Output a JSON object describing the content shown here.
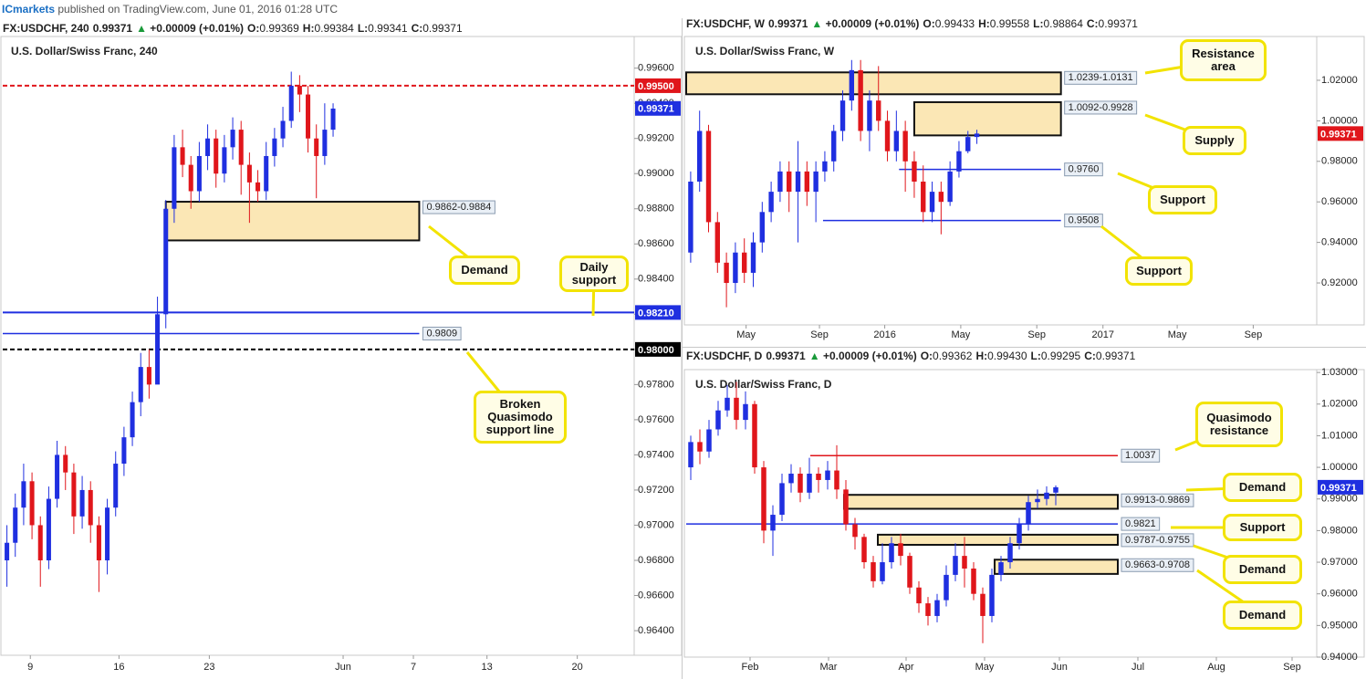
{
  "header": {
    "publisher": "ICmarkets",
    "published_text": "published on TradingView.com, June 01, 2016 01:28 UTC"
  },
  "chart_data": [
    {
      "type": "candlestick",
      "symbol": "FX:USDCHF, 240",
      "last": "0.99371",
      "change": "+0.00009 (+0.01%)",
      "ohlc": [
        {
          "label": "O:",
          "value": "0.99369"
        },
        {
          "label": "H:",
          "value": "0.99384"
        },
        {
          "label": "L:",
          "value": "0.99341"
        },
        {
          "label": "C:",
          "value": "0.99371"
        }
      ],
      "title": "U.S. Dollar/Swiss Franc, 240",
      "up_color": "#1f2fe0",
      "down_color": "#e0161b",
      "xlim": [
        -0.5,
        75
      ],
      "xticks": [
        {
          "value": 2.8,
          "label": "9"
        },
        {
          "value": 13.4,
          "label": "16"
        },
        {
          "value": 24.2,
          "label": "23"
        },
        {
          "value": 40.2,
          "label": "Jun"
        },
        {
          "value": 48.6,
          "label": "7"
        },
        {
          "value": 57.4,
          "label": "13"
        },
        {
          "value": 68.2,
          "label": "20"
        }
      ],
      "ylim": [
        0.9626,
        0.9978
      ],
      "yticks": [
        {
          "value": 0.964,
          "label": "0.96400"
        },
        {
          "value": 0.966,
          "label": "0.96600"
        },
        {
          "value": 0.968,
          "label": "0.96800"
        },
        {
          "value": 0.97,
          "label": "0.97000"
        },
        {
          "value": 0.972,
          "label": "0.97200"
        },
        {
          "value": 0.974,
          "label": "0.97400"
        },
        {
          "value": 0.976,
          "label": "0.97600"
        },
        {
          "value": 0.978,
          "label": "0.97800"
        },
        {
          "value": 0.98,
          "label": "0.98000"
        },
        {
          "value": 0.982,
          "label": "0.98200"
        },
        {
          "value": 0.984,
          "label": "0.98400"
        },
        {
          "value": 0.986,
          "label": "0.98600"
        },
        {
          "value": 0.988,
          "label": "0.98800"
        },
        {
          "value": 0.99,
          "label": "0.99000"
        },
        {
          "value": 0.992,
          "label": "0.99200"
        },
        {
          "value": 0.994,
          "label": "0.99400"
        },
        {
          "value": 0.996,
          "label": "0.99600"
        }
      ],
      "candles": {
        "open": [
          0.968,
          0.969,
          0.971,
          0.9725,
          0.97,
          0.968,
          0.9715,
          0.974,
          0.973,
          0.9705,
          0.972,
          0.97,
          0.968,
          0.971,
          0.9735,
          0.975,
          0.977,
          0.979,
          0.978,
          0.982,
          0.988,
          0.9915,
          0.9905,
          0.989,
          0.991,
          0.992,
          0.99,
          0.9915,
          0.9925,
          0.9905,
          0.9895,
          0.989,
          0.991,
          0.992,
          0.993,
          0.995,
          0.9945,
          0.992,
          0.991,
          0.9925
        ],
        "high": [
          0.97,
          0.9718,
          0.9735,
          0.973,
          0.9705,
          0.9722,
          0.9748,
          0.9745,
          0.9735,
          0.9728,
          0.9725,
          0.9705,
          0.9715,
          0.9742,
          0.9756,
          0.9776,
          0.9798,
          0.98,
          0.983,
          0.9885,
          0.9922,
          0.9925,
          0.991,
          0.9918,
          0.9928,
          0.9925,
          0.9922,
          0.9932,
          0.993,
          0.9912,
          0.9902,
          0.9918,
          0.9926,
          0.9938,
          0.9958,
          0.9956,
          0.995,
          0.9928,
          0.994,
          0.994
        ],
        "low": [
          0.9665,
          0.9682,
          0.97,
          0.9692,
          0.9665,
          0.9675,
          0.971,
          0.972,
          0.9695,
          0.9698,
          0.969,
          0.9662,
          0.9672,
          0.9705,
          0.9728,
          0.9745,
          0.9762,
          0.9772,
          0.9805,
          0.9812,
          0.9872,
          0.9898,
          0.988,
          0.9884,
          0.9902,
          0.9892,
          0.9895,
          0.9908,
          0.9888,
          0.9872,
          0.9884,
          0.9885,
          0.9904,
          0.9915,
          0.9926,
          0.9935,
          0.9912,
          0.9886,
          0.9905,
          0.9921
        ],
        "close": [
          0.969,
          0.971,
          0.9725,
          0.97,
          0.968,
          0.9715,
          0.974,
          0.973,
          0.9705,
          0.972,
          0.97,
          0.968,
          0.971,
          0.9735,
          0.975,
          0.977,
          0.979,
          0.978,
          0.982,
          0.988,
          0.9915,
          0.9905,
          0.989,
          0.991,
          0.992,
          0.99,
          0.9915,
          0.9925,
          0.9905,
          0.9895,
          0.989,
          0.991,
          0.992,
          0.993,
          0.995,
          0.9945,
          0.992,
          0.991,
          0.9925,
          0.9937
        ]
      },
      "zones": [
        {
          "low": 0.9862,
          "high": 0.9884,
          "x0": 19,
          "x1": 49.3,
          "label": "0.9862-0.9884"
        }
      ],
      "lines": [
        {
          "value": 0.995,
          "label": "0.99500",
          "color": "#e0161b",
          "dash": true,
          "tag": true
        },
        {
          "value": 0.9821,
          "label": "0.98210",
          "color": "#1f2fe0",
          "tag": true
        },
        {
          "value": 0.9809,
          "label": "0.9809",
          "color": "#1f2fe0",
          "x0": -0.5,
          "x1": 49.3
        },
        {
          "value": 0.98,
          "label": "0.98000",
          "color": "#000000",
          "dash": true,
          "tag": true
        }
      ],
      "price_tag": {
        "value": 0.99371,
        "label": "0.99371",
        "color": "#1f2fe0"
      },
      "annotations": [
        "Demand",
        "Daily support",
        "Broken Quasimodo support line"
      ]
    },
    {
      "type": "candlestick",
      "symbol": "FX:USDCHF, W",
      "last": "0.99371",
      "change": "+0.00009 (+0.01%)",
      "ohlc": [
        {
          "label": "O:",
          "value": "0.99433"
        },
        {
          "label": "H:",
          "value": "0.99558"
        },
        {
          "label": "L:",
          "value": "0.98864"
        },
        {
          "label": "C:",
          "value": "0.99371"
        }
      ],
      "title": "U.S. Dollar/Swiss Franc, W",
      "up_color": "#1f2fe0",
      "down_color": "#e0161b",
      "xlim": [
        -0.5,
        70
      ],
      "xticks": [
        {
          "value": 6.2,
          "label": "May"
        },
        {
          "value": 14.4,
          "label": "Sep"
        },
        {
          "value": 21.7,
          "label": "2016"
        },
        {
          "value": 30.2,
          "label": "May"
        },
        {
          "value": 38.7,
          "label": "Sep"
        },
        {
          "value": 46.1,
          "label": "2017"
        },
        {
          "value": 54.4,
          "label": "May"
        },
        {
          "value": 62.9,
          "label": "Sep"
        }
      ],
      "ylim": [
        0.8993,
        1.0416
      ],
      "yticks": [
        {
          "value": 0.92,
          "label": "0.92000"
        },
        {
          "value": 0.94,
          "label": "0.94000"
        },
        {
          "value": 0.96,
          "label": "0.96000"
        },
        {
          "value": 0.98,
          "label": "0.98000"
        },
        {
          "value": 1.0,
          "label": "1.00000"
        },
        {
          "value": 1.02,
          "label": "1.02000"
        }
      ],
      "candles": {
        "open": [
          0.935,
          0.97,
          0.995,
          0.95,
          0.93,
          0.92,
          0.935,
          0.925,
          0.94,
          0.955,
          0.965,
          0.975,
          0.965,
          0.975,
          0.965,
          0.975,
          0.98,
          0.995,
          1.01,
          1.025,
          0.995,
          1.01,
          1.0,
          0.985,
          0.995,
          0.98,
          0.97,
          0.955,
          0.965,
          0.96,
          0.975,
          0.985,
          0.992
        ],
        "high": [
          0.975,
          1.005,
          0.998,
          0.955,
          0.935,
          0.94,
          0.942,
          0.945,
          0.96,
          0.97,
          0.98,
          0.98,
          0.99,
          0.98,
          0.98,
          0.985,
          0.998,
          1.015,
          1.03,
          1.03,
          1.015,
          1.027,
          1.005,
          1.005,
          1.0,
          0.985,
          0.978,
          0.97,
          0.97,
          0.98,
          0.99,
          0.995,
          0.9956
        ],
        "low": [
          0.93,
          0.965,
          0.945,
          0.925,
          0.908,
          0.915,
          0.92,
          0.918,
          0.935,
          0.95,
          0.96,
          0.955,
          0.94,
          0.958,
          0.95,
          0.97,
          0.975,
          0.99,
          1.005,
          0.99,
          0.985,
          0.995,
          0.98,
          0.98,
          0.965,
          0.962,
          0.95,
          0.95,
          0.944,
          0.958,
          0.972,
          0.984,
          0.9886
        ],
        "close": [
          0.97,
          0.995,
          0.95,
          0.93,
          0.92,
          0.935,
          0.925,
          0.94,
          0.955,
          0.965,
          0.975,
          0.965,
          0.975,
          0.965,
          0.975,
          0.98,
          0.995,
          1.01,
          1.025,
          0.995,
          1.01,
          1.0,
          0.985,
          0.995,
          0.98,
          0.97,
          0.955,
          0.965,
          0.96,
          0.975,
          0.985,
          0.992,
          0.9937
        ]
      },
      "zones": [
        {
          "low": 1.0131,
          "high": 1.0239,
          "x0": -0.5,
          "x1": 41.4,
          "label": "1.0239-1.0131"
        },
        {
          "low": 0.9928,
          "high": 1.0092,
          "x0": 25,
          "x1": 41.4,
          "label": "1.0092-0.9928"
        }
      ],
      "lines": [
        {
          "value": 0.976,
          "label": "0.9760",
          "color": "#1f2fe0",
          "x0": 23.3,
          "x1": 41.4
        },
        {
          "value": 0.9508,
          "label": "0.9508",
          "color": "#1f2fe0",
          "x0": 14.8,
          "x1": 41.4
        }
      ],
      "price_tag": {
        "value": 0.99371,
        "label": "0.99371",
        "color": "#e0161b"
      },
      "annotations": [
        "Resistance area",
        "Supply",
        "Support",
        "Support"
      ]
    },
    {
      "type": "candlestick",
      "symbol": "FX:USDCHF, D",
      "last": "0.99371",
      "change": "+0.00009 (+0.01%)",
      "ohlc": [
        {
          "label": "O:",
          "value": "0.99362"
        },
        {
          "label": "H:",
          "value": "0.99430"
        },
        {
          "label": "L:",
          "value": "0.99295"
        },
        {
          "label": "C:",
          "value": "0.99371"
        }
      ],
      "title": "U.S. Dollar/Swiss Franc, D",
      "up_color": "#1f2fe0",
      "down_color": "#e0161b",
      "xlim": [
        -0.5,
        68.6
      ],
      "xticks": [
        {
          "value": 6.5,
          "label": "Feb"
        },
        {
          "value": 15.1,
          "label": "Mar"
        },
        {
          "value": 23.6,
          "label": "Apr"
        },
        {
          "value": 32.2,
          "label": "May"
        },
        {
          "value": 40.4,
          "label": "Jun"
        },
        {
          "value": 49,
          "label": "Jul"
        },
        {
          "value": 57.6,
          "label": "Aug"
        },
        {
          "value": 65.9,
          "label": "Sep"
        }
      ],
      "ylim": [
        0.94,
        1.0309
      ],
      "yticks": [
        {
          "value": 0.94,
          "label": "0.94000"
        },
        {
          "value": 0.95,
          "label": "0.95000"
        },
        {
          "value": 0.96,
          "label": "0.96000"
        },
        {
          "value": 0.97,
          "label": "0.97000"
        },
        {
          "value": 0.98,
          "label": "0.98000"
        },
        {
          "value": 0.99,
          "label": "0.99000"
        },
        {
          "value": 1.0,
          "label": "1.00000"
        },
        {
          "value": 1.01,
          "label": "1.01000"
        },
        {
          "value": 1.02,
          "label": "1.02000"
        },
        {
          "value": 1.03,
          "label": "1.03000"
        }
      ],
      "candles": {
        "open": [
          1.0,
          1.008,
          1.005,
          1.012,
          1.018,
          1.022,
          1.015,
          1.02,
          1.0,
          0.98,
          0.985,
          0.995,
          0.998,
          0.992,
          0.998,
          0.996,
          0.999,
          0.993,
          0.982,
          0.978,
          0.97,
          0.964,
          0.97,
          0.976,
          0.972,
          0.962,
          0.957,
          0.953,
          0.958,
          0.966,
          0.972,
          0.968,
          0.96,
          0.953,
          0.966,
          0.97,
          0.976,
          0.982,
          0.989,
          0.99,
          0.992
        ],
        "high": [
          1.01,
          1.012,
          1.015,
          1.021,
          1.026,
          1.027,
          1.024,
          1.021,
          1.002,
          0.988,
          0.998,
          1.001,
          1.0,
          1.003,
          1.0,
          1.002,
          1.007,
          0.996,
          0.984,
          0.979,
          0.972,
          0.976,
          0.978,
          0.979,
          0.973,
          0.964,
          0.959,
          0.96,
          0.969,
          0.976,
          0.978,
          0.97,
          0.962,
          0.968,
          0.972,
          0.978,
          0.984,
          0.991,
          0.993,
          0.994,
          0.9943
        ],
        "low": [
          0.996,
          1.001,
          1.003,
          1.01,
          1.016,
          1.012,
          1.012,
          0.998,
          0.976,
          0.972,
          0.983,
          0.992,
          0.989,
          0.99,
          0.992,
          0.993,
          0.99,
          0.98,
          0.974,
          0.968,
          0.962,
          0.963,
          0.968,
          0.969,
          0.96,
          0.954,
          0.95,
          0.951,
          0.956,
          0.964,
          0.962,
          0.958,
          0.9444,
          0.951,
          0.964,
          0.968,
          0.974,
          0.98,
          0.987,
          0.988,
          0.988
        ],
        "close": [
          1.008,
          1.005,
          1.012,
          1.018,
          1.022,
          1.015,
          1.02,
          1.0,
          0.98,
          0.985,
          0.995,
          0.998,
          0.992,
          0.998,
          0.996,
          0.999,
          0.993,
          0.982,
          0.978,
          0.97,
          0.964,
          0.97,
          0.976,
          0.972,
          0.962,
          0.957,
          0.953,
          0.958,
          0.966,
          0.972,
          0.968,
          0.96,
          0.953,
          0.966,
          0.97,
          0.976,
          0.982,
          0.989,
          0.99,
          0.992,
          0.9937
        ]
      },
      "zones": [
        {
          "low": 0.9869,
          "high": 0.9913,
          "x0": 16.8,
          "x1": 46.8,
          "label": "0.9913-0.9869"
        },
        {
          "low": 0.9755,
          "high": 0.9787,
          "x0": 20.5,
          "x1": 46.8,
          "label": "0.9787-0.9755"
        },
        {
          "low": 0.9663,
          "high": 0.9708,
          "x0": 33.3,
          "x1": 46.8,
          "label": "0.9663-0.9708"
        }
      ],
      "lines": [
        {
          "value": 1.0037,
          "label": "1.0037",
          "color": "#e0161b",
          "x0": 13.1,
          "x1": 46.8
        },
        {
          "value": 0.9821,
          "label": "0.9821",
          "color": "#1f2fe0",
          "x0": -0.5,
          "x1": 46.8
        }
      ],
      "price_tag": {
        "value": 0.99371,
        "label": "0.99371",
        "color": "#1f2fe0"
      },
      "annotations": [
        "Quasimodo resistance",
        "Demand",
        "Support",
        "Demand",
        "Demand"
      ]
    }
  ]
}
